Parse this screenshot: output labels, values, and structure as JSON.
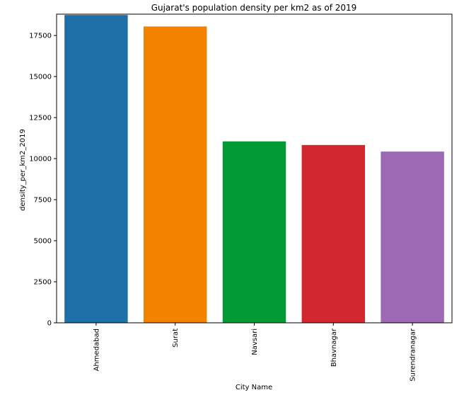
{
  "chart_data": {
    "type": "bar",
    "title": "Gujarat's population density per km2 as of 2019",
    "xlabel": "City Name",
    "ylabel": "density_per_km2_2019",
    "categories": [
      "Ahmedabad",
      "Surat",
      "Navsari",
      "Bhavnagar",
      "Surendranagar"
    ],
    "values": [
      18750,
      18050,
      11050,
      10830,
      10430
    ],
    "colors": [
      "#1f6fa8",
      "#f28200",
      "#009933",
      "#d1282f",
      "#9c6ab5"
    ],
    "ylim": [
      0,
      18800
    ],
    "yticks": [
      0,
      2500,
      5000,
      7500,
      10000,
      12500,
      15000,
      17500
    ],
    "grid": false,
    "legend": "none"
  }
}
